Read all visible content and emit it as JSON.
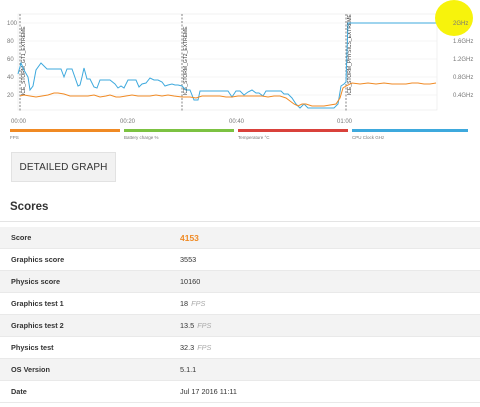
{
  "graph": {
    "y_left_ticks": [
      "100",
      "80",
      "60",
      "40",
      "20"
    ],
    "y_right_ticks": [
      "2GHz",
      "1.6GHz",
      "1.2GHz",
      "0.8GHz",
      "0.4GHz"
    ],
    "x_ticks": [
      "00:00",
      "00:20",
      "00:40",
      "01:00"
    ],
    "section_labels": [
      "ICE_STORM_GT1_EXTREME",
      "ICE_STORM_GT2_EXTREME",
      "ICE_STORM_PHYSICS_EXTREME"
    ],
    "legend": [
      {
        "label": "FPS",
        "color": "#f08a24"
      },
      {
        "label": "Battery charge %",
        "color": "#7cc242"
      },
      {
        "label": "Temperature °C",
        "color": "#d9413b"
      },
      {
        "label": "CPU Clock GHz",
        "color": "#3ea9dd"
      }
    ],
    "colors": {
      "fps": "#f08a24",
      "cpu": "#3ea9dd",
      "highlight": "#f7f30c"
    }
  },
  "detail_button": {
    "label": "DETAILED GRAPH"
  },
  "scores": {
    "title": "Scores",
    "rows": [
      {
        "key": "Score",
        "value": "4153",
        "unit": ""
      },
      {
        "key": "Graphics score",
        "value": "3553",
        "unit": ""
      },
      {
        "key": "Physics score",
        "value": "10160",
        "unit": ""
      },
      {
        "key": "Graphics test 1",
        "value": "18",
        "unit": "FPS"
      },
      {
        "key": "Graphics test 2",
        "value": "13.5",
        "unit": "FPS"
      },
      {
        "key": "Physics test",
        "value": "32.3",
        "unit": "FPS"
      },
      {
        "key": "OS Version",
        "value": "5.1.1",
        "unit": ""
      },
      {
        "key": "Date",
        "value": "Jul 17 2016 11:11",
        "unit": ""
      }
    ]
  }
}
